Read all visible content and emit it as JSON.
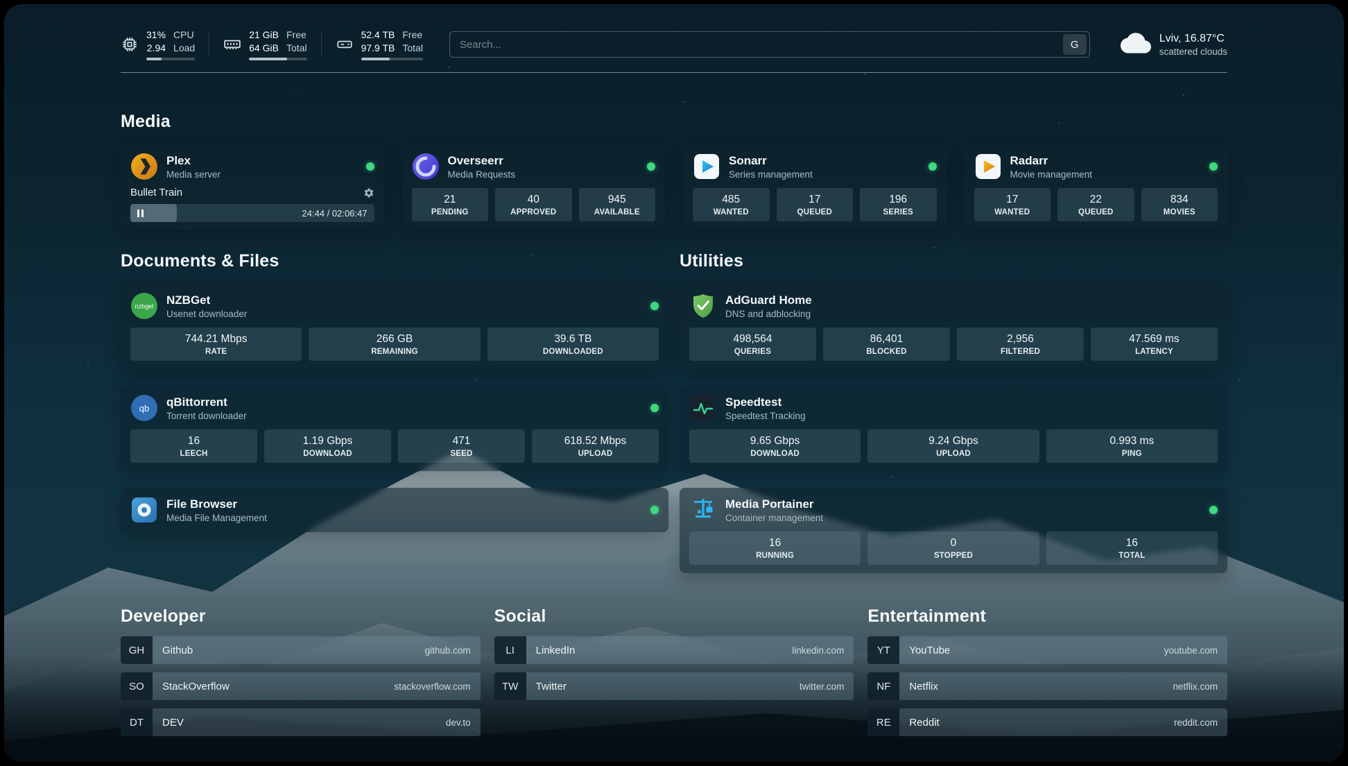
{
  "topbar": {
    "cpu": {
      "value1": "31%",
      "value2": "2.94",
      "label1": "CPU",
      "label2": "Load",
      "bar": 31
    },
    "ram": {
      "value1": "21 GiB",
      "value2": "64 GiB",
      "label1": "Free",
      "label2": "Total",
      "bar": 66
    },
    "disk": {
      "value1": "52.4 TB",
      "value2": "97.9 TB",
      "label1": "Free",
      "label2": "Total",
      "bar": 46
    },
    "search": {
      "placeholder": "Search...",
      "button_label": "G"
    },
    "weather": {
      "location": "Lviv, 16.87°C",
      "condition": "scattered clouds"
    }
  },
  "media": {
    "title": "Media",
    "plex": {
      "name": "Plex",
      "subtitle": "Media server",
      "now_playing": "Bullet Train",
      "time": "24:44 / 02:06:47",
      "progress": 19
    },
    "overseerr": {
      "name": "Overseerr",
      "subtitle": "Media Requests",
      "stats": [
        {
          "value": "21",
          "label": "PENDING"
        },
        {
          "value": "40",
          "label": "APPROVED"
        },
        {
          "value": "945",
          "label": "AVAILABLE"
        }
      ]
    },
    "sonarr": {
      "name": "Sonarr",
      "subtitle": "Series management",
      "stats": [
        {
          "value": "485",
          "label": "WANTED"
        },
        {
          "value": "17",
          "label": "QUEUED"
        },
        {
          "value": "196",
          "label": "SERIES"
        }
      ]
    },
    "radarr": {
      "name": "Radarr",
      "subtitle": "Movie management",
      "stats": [
        {
          "value": "17",
          "label": "WANTED"
        },
        {
          "value": "22",
          "label": "QUEUED"
        },
        {
          "value": "834",
          "label": "MOVIES"
        }
      ]
    }
  },
  "documents": {
    "title": "Documents & Files",
    "nzbget": {
      "name": "NZBGet",
      "subtitle": "Usenet downloader",
      "icon_label": "nzbget",
      "stats": [
        {
          "value": "744.21 Mbps",
          "label": "RATE"
        },
        {
          "value": "266 GB",
          "label": "REMAINING"
        },
        {
          "value": "39.6 TB",
          "label": "DOWNLOADED"
        }
      ]
    },
    "qbittorrent": {
      "name": "qBittorrent",
      "subtitle": "Torrent downloader",
      "icon_label": "qb",
      "stats": [
        {
          "value": "16",
          "label": "LEECH"
        },
        {
          "value": "1.19 Gbps",
          "label": "DOWNLOAD"
        },
        {
          "value": "471",
          "label": "SEED"
        },
        {
          "value": "618.52 Mbps",
          "label": "UPLOAD"
        }
      ]
    },
    "filebrowser": {
      "name": "File Browser",
      "subtitle": "Media File Management"
    }
  },
  "utilities": {
    "title": "Utilities",
    "adguard": {
      "name": "AdGuard Home",
      "subtitle": "DNS and adblocking",
      "stats": [
        {
          "value": "498,564",
          "label": "QUERIES"
        },
        {
          "value": "86,401",
          "label": "BLOCKED"
        },
        {
          "value": "2,956",
          "label": "FILTERED"
        },
        {
          "value": "47.569 ms",
          "label": "LATENCY"
        }
      ]
    },
    "speedtest": {
      "name": "Speedtest",
      "subtitle": "Speedtest Tracking",
      "stats": [
        {
          "value": "9.65 Gbps",
          "label": "DOWNLOAD"
        },
        {
          "value": "9.24 Gbps",
          "label": "UPLOAD"
        },
        {
          "value": "0.993 ms",
          "label": "PING"
        }
      ]
    },
    "portainer": {
      "name": "Media Portainer",
      "subtitle": "Container management",
      "stats": [
        {
          "value": "16",
          "label": "RUNNING"
        },
        {
          "value": "0",
          "label": "STOPPED"
        },
        {
          "value": "16",
          "label": "TOTAL"
        }
      ]
    }
  },
  "bookmarks": {
    "developer": {
      "title": "Developer",
      "items": [
        {
          "abbr": "GH",
          "name": "Github",
          "domain": "github.com"
        },
        {
          "abbr": "SO",
          "name": "StackOverflow",
          "domain": "stackoverflow.com"
        },
        {
          "abbr": "DT",
          "name": "DEV",
          "domain": "dev.to"
        }
      ]
    },
    "social": {
      "title": "Social",
      "items": [
        {
          "abbr": "LI",
          "name": "LinkedIn",
          "domain": "linkedin.com"
        },
        {
          "abbr": "TW",
          "name": "Twitter",
          "domain": "twitter.com"
        }
      ]
    },
    "entertainment": {
      "title": "Entertainment",
      "items": [
        {
          "abbr": "YT",
          "name": "YouTube",
          "domain": "youtube.com"
        },
        {
          "abbr": "NF",
          "name": "Netflix",
          "domain": "netflix.com"
        },
        {
          "abbr": "RE",
          "name": "Reddit",
          "domain": "reddit.com"
        }
      ]
    }
  }
}
